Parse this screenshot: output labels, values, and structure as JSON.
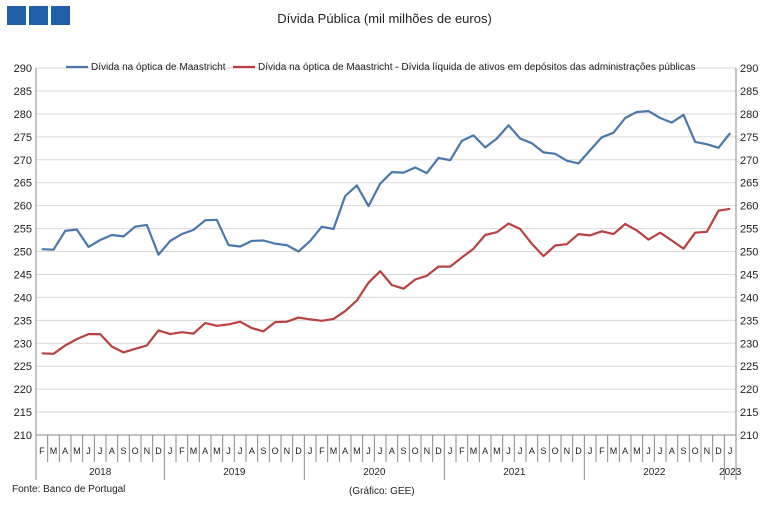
{
  "title": "Dívida Pública (mil milhões de euros)",
  "source": "Fonte: Banco de Portugal",
  "credit": "(Gráfico: GEE)",
  "colors": {
    "series1": "#4a77ad",
    "series2": "#b94141",
    "logo": "#1f5fa8"
  },
  "chart_data": {
    "type": "line",
    "title": "Dívida Pública (mil milhões de euros)",
    "ylim": [
      210,
      290
    ],
    "yticks": [
      210,
      215,
      220,
      225,
      230,
      235,
      240,
      245,
      250,
      255,
      260,
      265,
      270,
      275,
      280,
      285,
      290
    ],
    "grid": true,
    "legend": "top",
    "dual_axis_labels": true,
    "month_labels": [
      "F",
      "M",
      "A",
      "M",
      "J",
      "J",
      "A",
      "S",
      "O",
      "N",
      "D",
      "J",
      "F",
      "M",
      "A",
      "M",
      "J",
      "J",
      "A",
      "S",
      "O",
      "N",
      "D",
      "J",
      "F",
      "M",
      "A",
      "M",
      "J",
      "J",
      "A",
      "S",
      "O",
      "N",
      "D",
      "J",
      "F",
      "M",
      "A",
      "M",
      "J",
      "J",
      "A",
      "S",
      "O",
      "N",
      "D",
      "J",
      "F",
      "M",
      "A",
      "M",
      "J",
      "J",
      "A",
      "S",
      "O",
      "N",
      "D",
      "J"
    ],
    "year_groups": [
      {
        "label": "2018",
        "start": 0,
        "end": 10
      },
      {
        "label": "2019",
        "start": 11,
        "end": 22
      },
      {
        "label": "2020",
        "start": 23,
        "end": 34
      },
      {
        "label": "2021",
        "start": 35,
        "end": 46
      },
      {
        "label": "2022",
        "start": 47,
        "end": 58
      },
      {
        "label": "2023",
        "start": 59,
        "end": 59
      }
    ],
    "series": [
      {
        "name": "Dívida na óptica de Maastricht",
        "values": [
          250.5,
          250.4,
          254.5,
          254.8,
          251.0,
          252.5,
          253.6,
          253.3,
          255.4,
          255.8,
          249.3,
          252.3,
          253.8,
          254.7,
          256.8,
          256.9,
          251.4,
          251.1,
          252.3,
          252.4,
          251.7,
          251.4,
          250.0,
          252.3,
          255.4,
          254.9,
          262.1,
          264.4,
          259.9,
          264.8,
          267.3,
          267.2,
          268.3,
          267.1,
          270.4,
          269.9,
          274.1,
          275.3,
          272.7,
          274.6,
          277.5,
          274.6,
          273.6,
          271.6,
          271.3,
          269.8,
          269.2,
          272.1,
          274.9,
          275.9,
          279.1,
          280.4,
          280.6,
          279.1,
          278.1,
          279.8,
          273.9,
          273.4,
          272.6,
          275.8
        ]
      },
      {
        "name": "Dívida na óptica de Maastricht - Dívida líquida de ativos em depósitos das administrações públicas",
        "values": [
          227.8,
          227.7,
          229.5,
          230.9,
          232.0,
          232.0,
          229.3,
          228.0,
          228.8,
          229.5,
          232.8,
          232.0,
          232.4,
          232.1,
          234.4,
          233.8,
          234.1,
          234.7,
          233.3,
          232.6,
          234.6,
          234.7,
          235.6,
          235.2,
          234.9,
          235.3,
          237.0,
          239.3,
          243.2,
          245.7,
          242.7,
          241.9,
          243.9,
          244.7,
          246.7,
          246.7,
          248.7,
          250.6,
          253.6,
          254.2,
          256.1,
          254.9,
          251.7,
          249.0,
          251.3,
          251.6,
          253.8,
          253.5,
          254.4,
          253.8,
          256.0,
          254.6,
          252.6,
          254.1,
          252.4,
          250.6,
          254.1,
          254.3,
          258.9,
          259.3
        ]
      }
    ]
  }
}
